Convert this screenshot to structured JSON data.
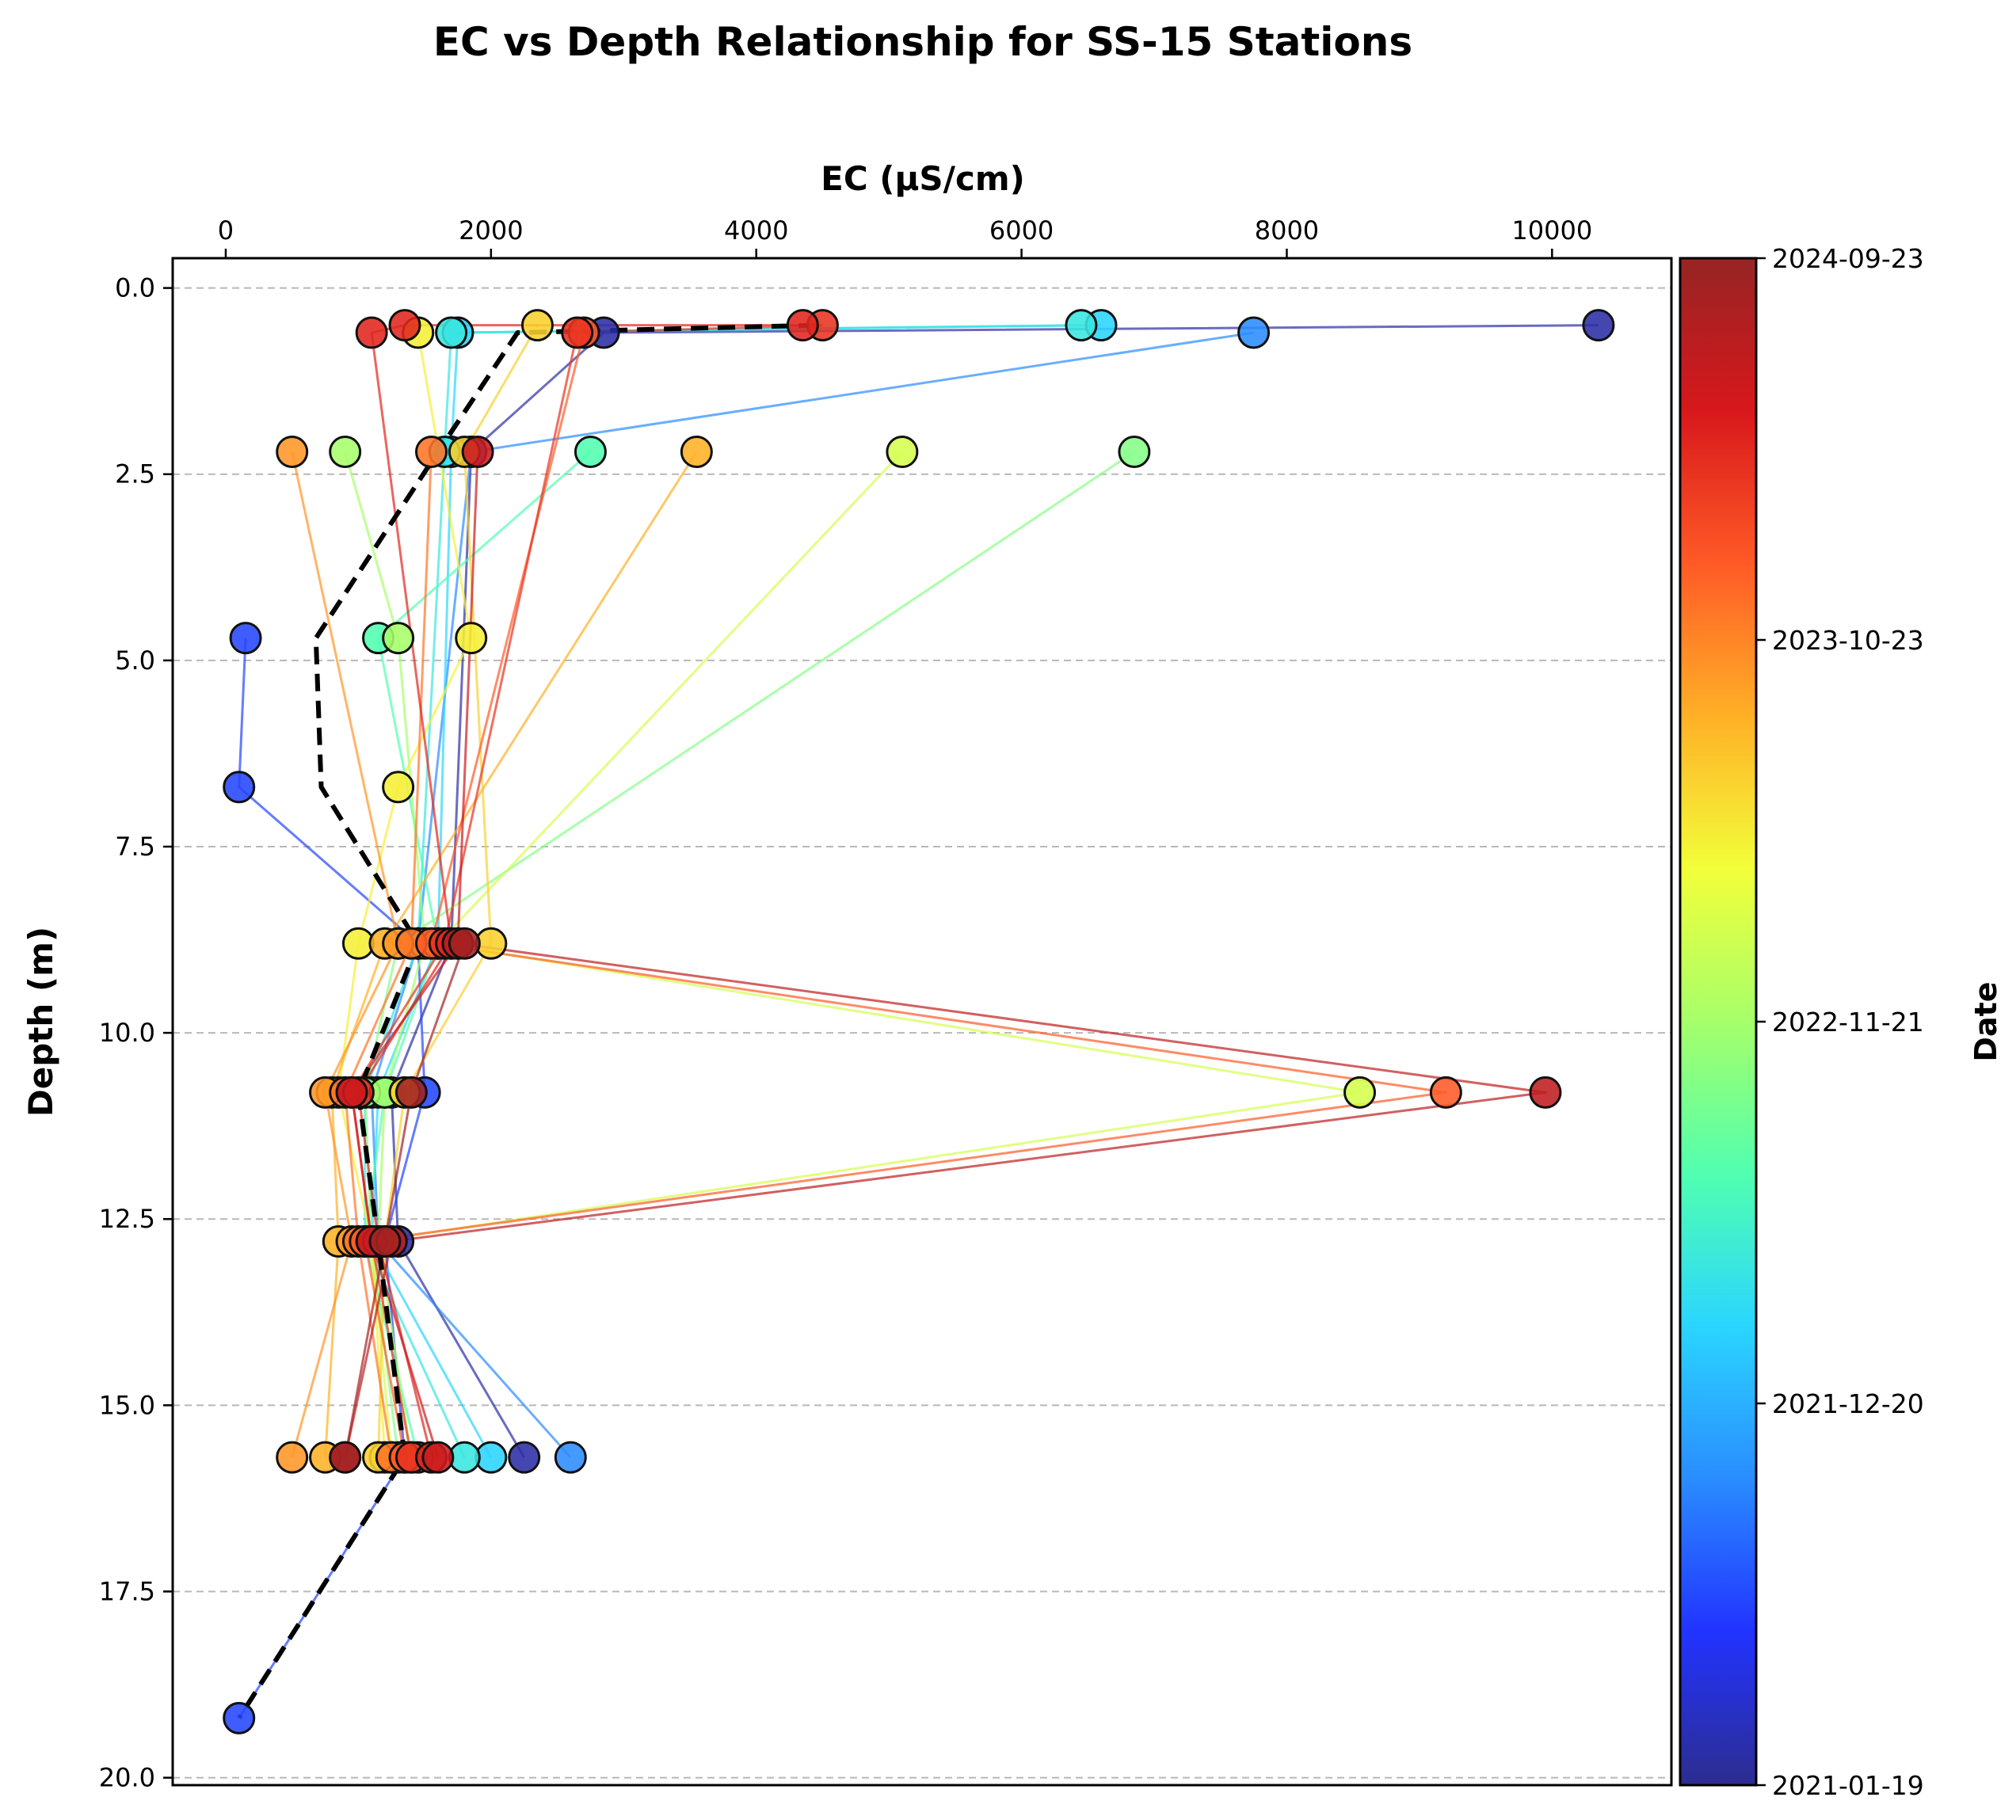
{
  "chart_data": {
    "type": "line",
    "title": "EC vs Depth Relationship for SS-15 Stations",
    "xlabel": "EC (μS/cm)",
    "ylabel": "Depth (m)",
    "xlim": [
      -400,
      10900
    ],
    "ylim": [
      20.1,
      -0.4
    ],
    "x_axis_position": "top",
    "y_axis_inverted": true,
    "x_ticks": [
      0,
      2000,
      4000,
      6000,
      8000,
      10000
    ],
    "x_tick_labels": [
      "0",
      "2000",
      "4000",
      "6000",
      "8000",
      "10000"
    ],
    "y_ticks": [
      0.0,
      2.5,
      5.0,
      7.5,
      10.0,
      12.5,
      15.0,
      17.5,
      20.0
    ],
    "y_tick_labels": [
      "0.0",
      "2.5",
      "5.0",
      "7.5",
      "10.0",
      "12.5",
      "15.0",
      "17.5",
      "20.0"
    ],
    "grid": "horizontal dashed",
    "colorbar": {
      "label": "Date",
      "colormap": "jet",
      "t_range": [
        0,
        1
      ],
      "ticks": [
        {
          "label": "2024-09-23",
          "t": 1.0
        },
        {
          "label": "2023-10-23",
          "t": 0.75
        },
        {
          "label": "2022-11-21",
          "t": 0.5
        },
        {
          "label": "2021-12-20",
          "t": 0.25
        },
        {
          "label": "2021-01-19",
          "t": 0.0
        }
      ]
    },
    "colorbar_stops": [
      "#2d2d8f",
      "#2233ff",
      "#2a8cff",
      "#2ad5ff",
      "#50ffb0",
      "#a6ff6a",
      "#f2ff3a",
      "#ffb026",
      "#ff5a26",
      "#d8181c",
      "#962424"
    ],
    "median_profile": {
      "style": "black dashed",
      "points": [
        {
          "ec": 4450,
          "depth": 0.5
        },
        {
          "ec": 2200,
          "depth": 0.6
        },
        {
          "ec": 1600,
          "depth": 2.2
        },
        {
          "ec": 680,
          "depth": 4.7
        },
        {
          "ec": 720,
          "depth": 6.7
        },
        {
          "ec": 1450,
          "depth": 8.8
        },
        {
          "ec": 1000,
          "depth": 10.8
        },
        {
          "ec": 1150,
          "depth": 12.8
        },
        {
          "ec": 1350,
          "depth": 15.7
        },
        {
          "ec": 100,
          "depth": 19.2
        }
      ]
    },
    "series": [
      {
        "t": 0.02,
        "points": [
          {
            "ec": 10350,
            "depth": 0.5
          },
          {
            "ec": 2850,
            "depth": 0.6
          },
          {
            "ec": 1850,
            "depth": 2.2
          },
          {
            "ec": 1700,
            "depth": 8.8
          },
          {
            "ec": 1250,
            "depth": 10.8
          },
          {
            "ec": 1300,
            "depth": 12.8
          },
          {
            "ec": 2250,
            "depth": 15.7
          }
        ]
      },
      {
        "t": 0.12,
        "points": [
          {
            "ec": 150,
            "depth": 4.7
          },
          {
            "ec": 100,
            "depth": 6.7
          },
          {
            "ec": 1450,
            "depth": 8.8
          },
          {
            "ec": 1500,
            "depth": 10.8
          },
          {
            "ec": 1200,
            "depth": 12.8
          },
          {
            "ec": 1350,
            "depth": 15.7
          },
          {
            "ec": 100,
            "depth": 19.2
          }
        ]
      },
      {
        "t": 0.2,
        "points": [
          {
            "ec": 7750,
            "depth": 0.6
          },
          {
            "ec": 1850,
            "depth": 2.2
          },
          {
            "ec": 1450,
            "depth": 8.8
          },
          {
            "ec": 1100,
            "depth": 10.8
          },
          {
            "ec": 1150,
            "depth": 12.8
          },
          {
            "ec": 2600,
            "depth": 15.7
          }
        ]
      },
      {
        "t": 0.3,
        "points": [
          {
            "ec": 6600,
            "depth": 0.5
          },
          {
            "ec": 1750,
            "depth": 0.6
          },
          {
            "ec": 1700,
            "depth": 2.2
          },
          {
            "ec": 1600,
            "depth": 8.8
          },
          {
            "ec": 1150,
            "depth": 10.8
          },
          {
            "ec": 1100,
            "depth": 12.8
          },
          {
            "ec": 2000,
            "depth": 15.7
          }
        ]
      },
      {
        "t": 0.34,
        "points": [
          {
            "ec": 6450,
            "depth": 0.5
          },
          {
            "ec": 1700,
            "depth": 0.6
          },
          {
            "ec": 1650,
            "depth": 2.2
          },
          {
            "ec": 1450,
            "depth": 8.8
          },
          {
            "ec": 1050,
            "depth": 10.8
          },
          {
            "ec": 1050,
            "depth": 12.8
          },
          {
            "ec": 1800,
            "depth": 15.7
          }
        ]
      },
      {
        "t": 0.4,
        "points": [
          {
            "ec": 2750,
            "depth": 2.2
          },
          {
            "ec": 1150,
            "depth": 4.7
          },
          {
            "ec": 1600,
            "depth": 8.8
          },
          {
            "ec": 1200,
            "depth": 10.8
          },
          {
            "ec": 1050,
            "depth": 12.8
          },
          {
            "ec": 1450,
            "depth": 15.7
          }
        ]
      },
      {
        "t": 0.46,
        "points": [
          {
            "ec": 6850,
            "depth": 2.2
          },
          {
            "ec": 1300,
            "depth": 8.8
          },
          {
            "ec": 1050,
            "depth": 10.8
          },
          {
            "ec": 1100,
            "depth": 12.8
          },
          {
            "ec": 1300,
            "depth": 15.7
          }
        ]
      },
      {
        "t": 0.5,
        "points": [
          {
            "ec": 900,
            "depth": 2.2
          },
          {
            "ec": 1300,
            "depth": 4.7
          },
          {
            "ec": 1500,
            "depth": 8.8
          },
          {
            "ec": 1200,
            "depth": 10.8
          },
          {
            "ec": 1150,
            "depth": 12.8
          },
          {
            "ec": 1400,
            "depth": 15.7
          }
        ]
      },
      {
        "t": 0.56,
        "points": [
          {
            "ec": 5100,
            "depth": 2.2
          },
          {
            "ec": 1600,
            "depth": 8.8
          },
          {
            "ec": 8550,
            "depth": 10.8
          },
          {
            "ec": 1100,
            "depth": 12.8
          },
          {
            "ec": 1250,
            "depth": 15.7
          }
        ]
      },
      {
        "t": 0.62,
        "points": [
          {
            "ec": 1450,
            "depth": 0.6
          },
          {
            "ec": 1850,
            "depth": 4.7
          },
          {
            "ec": 1300,
            "depth": 6.7
          },
          {
            "ec": 1000,
            "depth": 8.8
          },
          {
            "ec": 850,
            "depth": 10.8
          },
          {
            "ec": 1100,
            "depth": 12.8
          },
          {
            "ec": 1200,
            "depth": 15.7
          }
        ]
      },
      {
        "t": 0.66,
        "points": [
          {
            "ec": 2350,
            "depth": 0.5
          },
          {
            "ec": 1800,
            "depth": 2.2
          },
          {
            "ec": 2000,
            "depth": 8.8
          },
          {
            "ec": 1350,
            "depth": 10.8
          },
          {
            "ec": 1200,
            "depth": 12.8
          },
          {
            "ec": 1150,
            "depth": 15.7
          }
        ]
      },
      {
        "t": 0.7,
        "points": [
          {
            "ec": 3550,
            "depth": 2.2
          },
          {
            "ec": 1200,
            "depth": 8.8
          },
          {
            "ec": 800,
            "depth": 10.8
          },
          {
            "ec": 850,
            "depth": 12.8
          },
          {
            "ec": 750,
            "depth": 15.7
          }
        ]
      },
      {
        "t": 0.73,
        "points": [
          {
            "ec": 500,
            "depth": 2.2
          },
          {
            "ec": 1300,
            "depth": 8.8
          },
          {
            "ec": 750,
            "depth": 10.8
          },
          {
            "ec": 950,
            "depth": 12.8
          },
          {
            "ec": 500,
            "depth": 15.7
          }
        ]
      },
      {
        "t": 0.77,
        "points": [
          {
            "ec": 1550,
            "depth": 2.2
          },
          {
            "ec": 1400,
            "depth": 8.8
          },
          {
            "ec": 900,
            "depth": 10.8
          },
          {
            "ec": 1000,
            "depth": 12.8
          },
          {
            "ec": 1250,
            "depth": 15.7
          }
        ]
      },
      {
        "t": 0.8,
        "points": [
          {
            "ec": 2700,
            "depth": 0.6
          },
          {
            "ec": 1550,
            "depth": 8.8
          },
          {
            "ec": 9200,
            "depth": 10.8
          },
          {
            "ec": 1050,
            "depth": 12.8
          },
          {
            "ec": 1350,
            "depth": 15.7
          }
        ]
      },
      {
        "t": 0.86,
        "points": [
          {
            "ec": 4500,
            "depth": 0.5
          },
          {
            "ec": 2650,
            "depth": 0.6
          },
          {
            "ec": 1650,
            "depth": 8.8
          },
          {
            "ec": 950,
            "depth": 10.8
          },
          {
            "ec": 1100,
            "depth": 12.8
          },
          {
            "ec": 1400,
            "depth": 15.7
          }
        ]
      },
      {
        "t": 0.88,
        "points": [
          {
            "ec": 4350,
            "depth": 0.5
          },
          {
            "ec": 1350,
            "depth": 0.5
          },
          {
            "ec": 1100,
            "depth": 0.6
          },
          {
            "ec": 1700,
            "depth": 8.8
          },
          {
            "ec": 1000,
            "depth": 10.8
          },
          {
            "ec": 1150,
            "depth": 12.8
          },
          {
            "ec": 1550,
            "depth": 15.7
          }
        ]
      },
      {
        "t": 0.92,
        "points": [
          {
            "ec": 1900,
            "depth": 2.2
          },
          {
            "ec": 1750,
            "depth": 8.8
          },
          {
            "ec": 950,
            "depth": 10.8
          },
          {
            "ec": 1100,
            "depth": 12.8
          },
          {
            "ec": 1600,
            "depth": 15.7
          }
        ]
      },
      {
        "t": 0.94,
        "points": [
          {
            "ec": 1750,
            "depth": 8.8
          },
          {
            "ec": 9950,
            "depth": 10.8
          },
          {
            "ec": 1250,
            "depth": 12.8
          },
          {
            "ec": 900,
            "depth": 15.7
          }
        ]
      },
      {
        "t": 0.98,
        "points": [
          {
            "ec": 1800,
            "depth": 8.8
          },
          {
            "ec": 1400,
            "depth": 10.8
          },
          {
            "ec": 1200,
            "depth": 12.8
          },
          {
            "ec": 900,
            "depth": 15.7
          }
        ]
      }
    ]
  }
}
